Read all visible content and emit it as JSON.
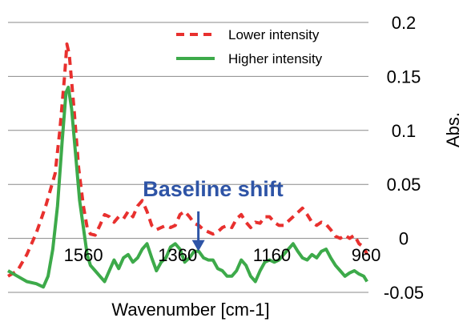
{
  "chart_data": {
    "type": "line",
    "xlabel": "Wavenumber [cm-1]",
    "ylabel": "Abs.",
    "x_reversed": true,
    "xlim": [
      1720,
      955
    ],
    "ylim": [
      -0.05,
      0.2
    ],
    "x_ticks": [
      1560,
      1360,
      1160,
      960
    ],
    "y_ticks": [
      -0.05,
      0,
      0.05,
      0.1,
      0.15,
      0.2
    ],
    "y_tick_labels": [
      "-0.05",
      "0",
      "0.05",
      "0.1",
      "0.15",
      "0.2"
    ],
    "grid": "horizontal",
    "legend_position": "top-right",
    "annotation": {
      "text": "Baseline shift",
      "color": "#2E54A6",
      "arrow_from_y": 0.025,
      "arrow_to_y": -0.012,
      "arrow_x": 1316
    },
    "series": [
      {
        "name": "Lower intensity",
        "color": "#E8302E",
        "style": "dashed",
        "points": [
          [
            1720,
            -0.035
          ],
          [
            1700,
            -0.03
          ],
          [
            1680,
            -0.015
          ],
          [
            1660,
            0.005
          ],
          [
            1640,
            0.03
          ],
          [
            1620,
            0.06
          ],
          [
            1610,
            0.1
          ],
          [
            1600,
            0.15
          ],
          [
            1595,
            0.18
          ],
          [
            1590,
            0.17
          ],
          [
            1580,
            0.12
          ],
          [
            1570,
            0.065
          ],
          [
            1560,
            0.03
          ],
          [
            1552,
            0.01
          ],
          [
            1545,
            0.004
          ],
          [
            1535,
            0.003
          ],
          [
            1525,
            0.012
          ],
          [
            1515,
            0.022
          ],
          [
            1505,
            0.02
          ],
          [
            1495,
            0.015
          ],
          [
            1485,
            0.02
          ],
          [
            1475,
            0.018
          ],
          [
            1465,
            0.025
          ],
          [
            1455,
            0.02
          ],
          [
            1445,
            0.03
          ],
          [
            1435,
            0.035
          ],
          [
            1425,
            0.025
          ],
          [
            1415,
            0.012
          ],
          [
            1405,
            0.008
          ],
          [
            1395,
            0.01
          ],
          [
            1385,
            0.012
          ],
          [
            1375,
            0.01
          ],
          [
            1365,
            0.012
          ],
          [
            1355,
            0.022
          ],
          [
            1345,
            0.025
          ],
          [
            1335,
            0.02
          ],
          [
            1325,
            0.014
          ],
          [
            1315,
            0.012
          ],
          [
            1305,
            0.008
          ],
          [
            1295,
            0.006
          ],
          [
            1285,
            0.004
          ],
          [
            1275,
            0.006
          ],
          [
            1265,
            0.01
          ],
          [
            1255,
            0.012
          ],
          [
            1245,
            0.01
          ],
          [
            1235,
            0.018
          ],
          [
            1225,
            0.022
          ],
          [
            1215,
            0.015
          ],
          [
            1205,
            0.01
          ],
          [
            1195,
            0.015
          ],
          [
            1185,
            0.014
          ],
          [
            1175,
            0.02
          ],
          [
            1165,
            0.02
          ],
          [
            1155,
            0.015
          ],
          [
            1145,
            0.012
          ],
          [
            1135,
            0.012
          ],
          [
            1125,
            0.016
          ],
          [
            1115,
            0.02
          ],
          [
            1105,
            0.024
          ],
          [
            1095,
            0.028
          ],
          [
            1085,
            0.022
          ],
          [
            1075,
            0.015
          ],
          [
            1065,
            0.012
          ],
          [
            1055,
            0.015
          ],
          [
            1045,
            0.013
          ],
          [
            1035,
            0.008
          ],
          [
            1025,
            0.002
          ],
          [
            1015,
            0.0
          ],
          [
            1005,
            0.003
          ],
          [
            995,
            0.0
          ],
          [
            985,
            0.003
          ],
          [
            975,
            -0.005
          ],
          [
            965,
            -0.008
          ],
          [
            958,
            -0.015
          ]
        ]
      },
      {
        "name": "Higher intensity",
        "color": "#3DAA4A",
        "style": "solid",
        "points": [
          [
            1720,
            -0.03
          ],
          [
            1700,
            -0.035
          ],
          [
            1680,
            -0.04
          ],
          [
            1660,
            -0.042
          ],
          [
            1645,
            -0.045
          ],
          [
            1635,
            -0.035
          ],
          [
            1625,
            -0.01
          ],
          [
            1615,
            0.03
          ],
          [
            1605,
            0.09
          ],
          [
            1597,
            0.135
          ],
          [
            1592,
            0.14
          ],
          [
            1585,
            0.12
          ],
          [
            1575,
            0.07
          ],
          [
            1568,
            0.035
          ],
          [
            1560,
            0.01
          ],
          [
            1552,
            -0.015
          ],
          [
            1545,
            -0.025
          ],
          [
            1535,
            -0.03
          ],
          [
            1525,
            -0.035
          ],
          [
            1515,
            -0.04
          ],
          [
            1505,
            -0.03
          ],
          [
            1495,
            -0.02
          ],
          [
            1485,
            -0.028
          ],
          [
            1475,
            -0.018
          ],
          [
            1465,
            -0.015
          ],
          [
            1455,
            -0.022
          ],
          [
            1445,
            -0.018
          ],
          [
            1435,
            -0.01
          ],
          [
            1425,
            -0.005
          ],
          [
            1415,
            -0.018
          ],
          [
            1405,
            -0.03
          ],
          [
            1395,
            -0.022
          ],
          [
            1385,
            -0.018
          ],
          [
            1375,
            -0.008
          ],
          [
            1365,
            -0.005
          ],
          [
            1355,
            -0.01
          ],
          [
            1345,
            -0.022
          ],
          [
            1335,
            -0.018
          ],
          [
            1325,
            -0.012
          ],
          [
            1315,
            -0.012
          ],
          [
            1305,
            -0.018
          ],
          [
            1295,
            -0.02
          ],
          [
            1285,
            -0.02
          ],
          [
            1275,
            -0.028
          ],
          [
            1265,
            -0.03
          ],
          [
            1255,
            -0.035
          ],
          [
            1245,
            -0.035
          ],
          [
            1235,
            -0.03
          ],
          [
            1225,
            -0.02
          ],
          [
            1215,
            -0.025
          ],
          [
            1205,
            -0.035
          ],
          [
            1195,
            -0.04
          ],
          [
            1185,
            -0.03
          ],
          [
            1175,
            -0.022
          ],
          [
            1165,
            -0.02
          ],
          [
            1155,
            -0.022
          ],
          [
            1145,
            -0.02
          ],
          [
            1135,
            -0.015
          ],
          [
            1125,
            -0.01
          ],
          [
            1115,
            -0.005
          ],
          [
            1105,
            -0.012
          ],
          [
            1095,
            -0.018
          ],
          [
            1085,
            -0.02
          ],
          [
            1075,
            -0.015
          ],
          [
            1065,
            -0.018
          ],
          [
            1055,
            -0.012
          ],
          [
            1045,
            -0.01
          ],
          [
            1035,
            -0.018
          ],
          [
            1025,
            -0.025
          ],
          [
            1015,
            -0.03
          ],
          [
            1005,
            -0.035
          ],
          [
            995,
            -0.032
          ],
          [
            985,
            -0.03
          ],
          [
            975,
            -0.033
          ],
          [
            965,
            -0.035
          ],
          [
            958,
            -0.04
          ]
        ]
      }
    ]
  }
}
